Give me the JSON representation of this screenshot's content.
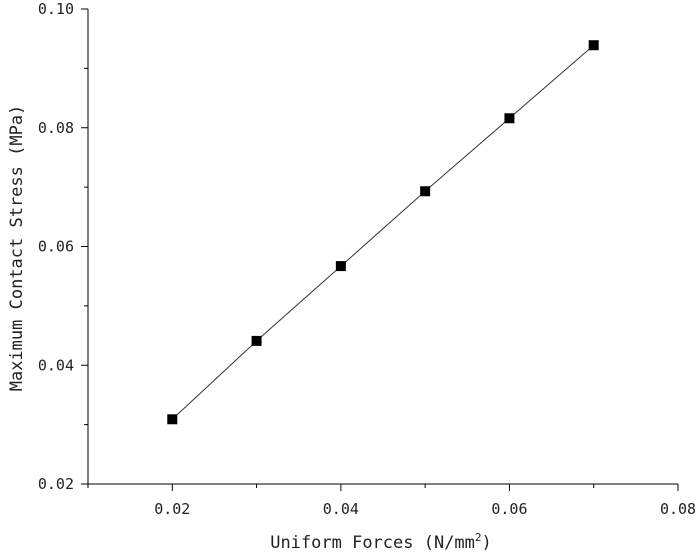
{
  "chart_data": {
    "type": "line",
    "xlabel": "Uniform Forces (N/mm",
    "xlabel_sup": "2",
    "xlabel_close": ")",
    "ylabel": "Maximum Contact Stress (MPa)",
    "xlim": [
      0.01,
      0.08
    ],
    "ylim": [
      0.02,
      0.1
    ],
    "x_ticks": [
      0.02,
      0.04,
      0.06,
      0.08
    ],
    "x_tick_labels": [
      "0.02",
      "0.04",
      "0.06",
      "0.08"
    ],
    "x_minor_ticks": [
      0.01,
      0.03,
      0.05,
      0.07
    ],
    "y_ticks": [
      0.02,
      0.04,
      0.06,
      0.08,
      0.1
    ],
    "y_tick_labels": [
      "0.02",
      "0.04",
      "0.06",
      "0.08",
      "0.10"
    ],
    "y_minor_ticks": [
      0.03,
      0.05,
      0.07,
      0.09
    ],
    "grid": false,
    "series": [
      {
        "marker": "square",
        "color": "#000000",
        "x": [
          0.02,
          0.03,
          0.04,
          0.05,
          0.06,
          0.07
        ],
        "y": [
          0.0309,
          0.0441,
          0.0567,
          0.0693,
          0.0816,
          0.0939
        ]
      }
    ]
  }
}
